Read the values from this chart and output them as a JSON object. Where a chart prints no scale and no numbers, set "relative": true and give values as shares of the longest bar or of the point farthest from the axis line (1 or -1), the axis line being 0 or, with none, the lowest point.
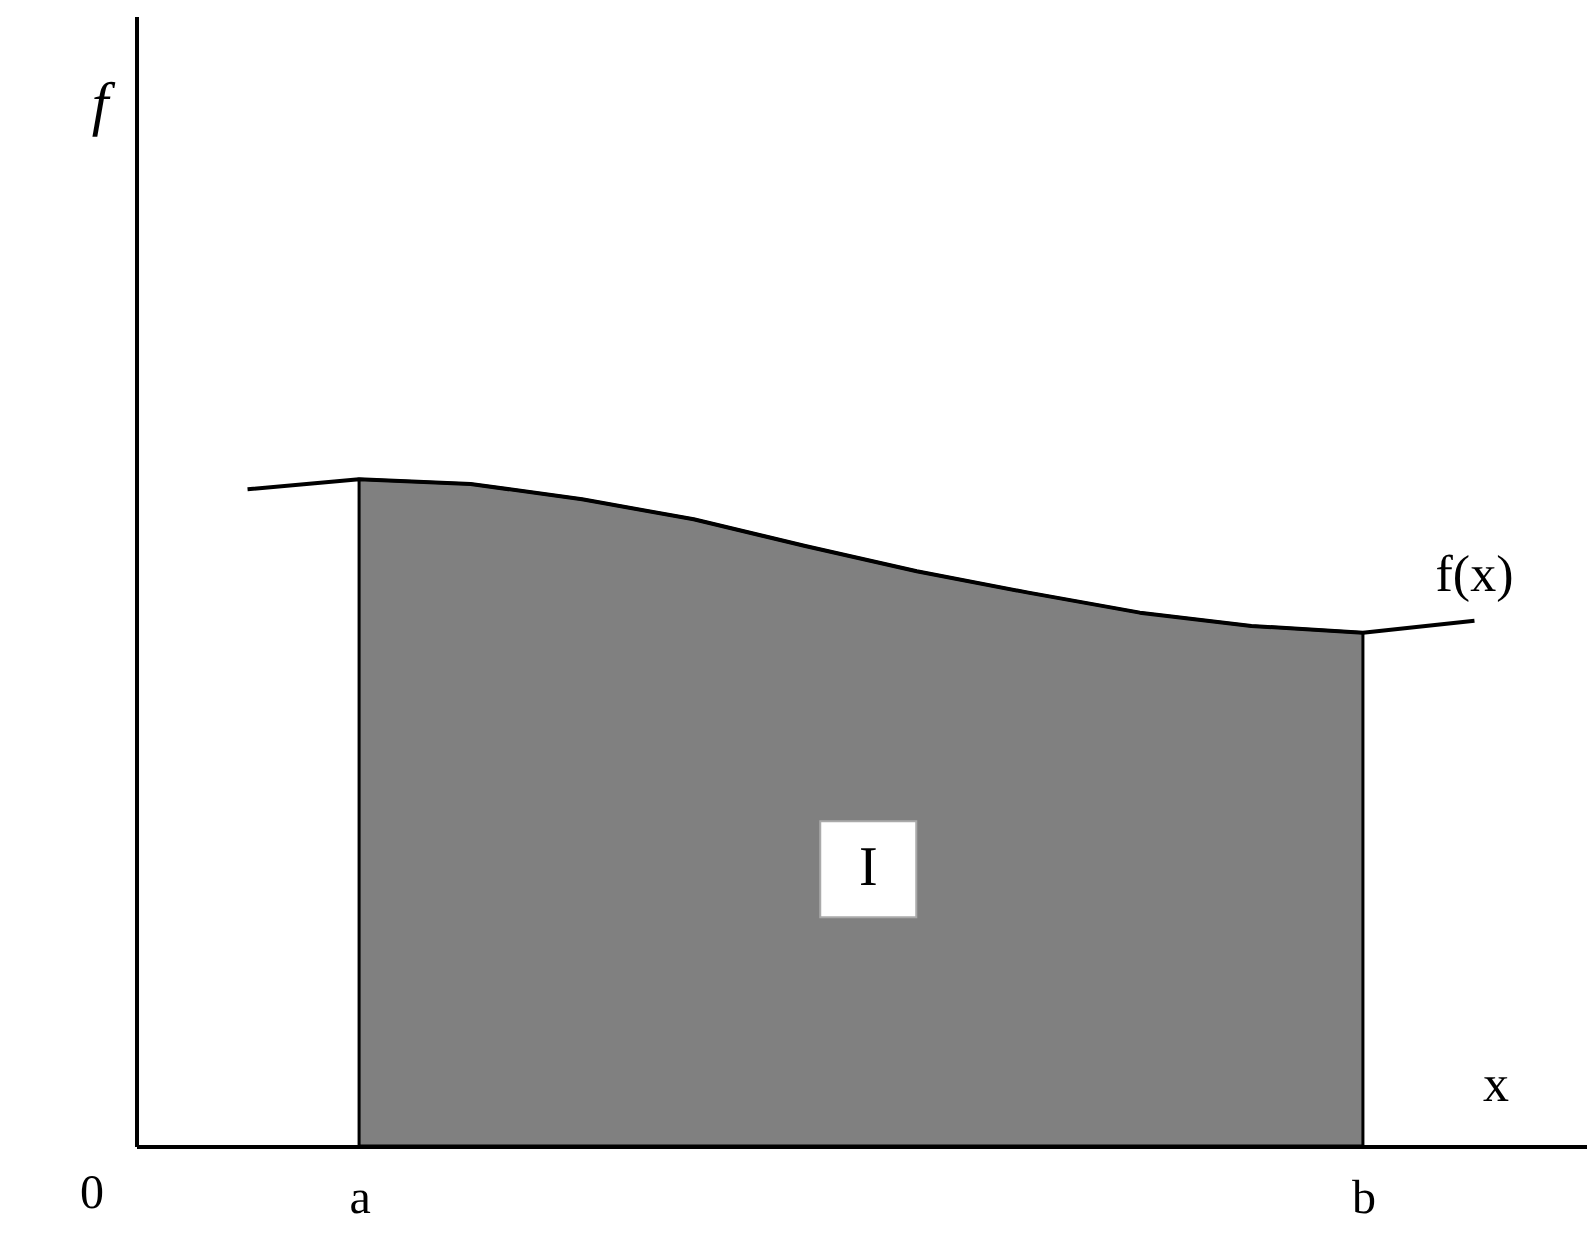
{
  "chart_data": {
    "type": "line",
    "relative": true,
    "xlabel": "x",
    "categories": [
      null,
      "a",
      null,
      null,
      null,
      null,
      null,
      null,
      null,
      null,
      "b",
      null
    ],
    "series": [
      {
        "type": "area",
        "color": "#808080",
        "values": [
          null,
          1.0,
          0.993,
          0.97,
          0.94,
          0.9,
          0.862,
          0.83,
          0.8,
          0.78,
          0.77,
          null
        ]
      },
      {
        "name": "f(x)",
        "color": "#000000",
        "values": [
          0.985,
          1.0,
          0.993,
          0.97,
          0.94,
          0.9,
          0.862,
          0.83,
          0.8,
          0.78,
          0.77,
          0.788
        ]
      }
    ],
    "annotations": [
      "I",
      "0",
      "f"
    ],
    "grid": false
  }
}
